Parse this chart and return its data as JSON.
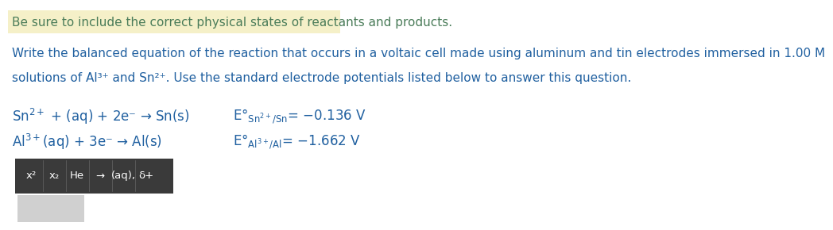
{
  "bg_color": "#ffffff",
  "highlight_color": "#f5f0c8",
  "highlight_text": "Be sure to include the correct physical states of reactants and products.",
  "highlight_text_color": "#4a7c59",
  "body_text_color": "#2060a0",
  "body_line1": "Write the balanced equation of the reaction that occurs in a voltaic cell made using aluminum and tin electrodes immersed in 1.00 M",
  "body_line2": "solutions of Al³⁺ and Sn²⁺. Use the standard electrode potentials listed below to answer this question.",
  "toolbar_bg": "#3a3a3a",
  "toolbar_items": [
    "x²",
    "x₂",
    "He",
    "→",
    "(aq),",
    "δ+"
  ],
  "gray_box_color": "#d0d0d0",
  "fontsize_highlight": 11,
  "fontsize_body": 11,
  "fontsize_eq": 12
}
